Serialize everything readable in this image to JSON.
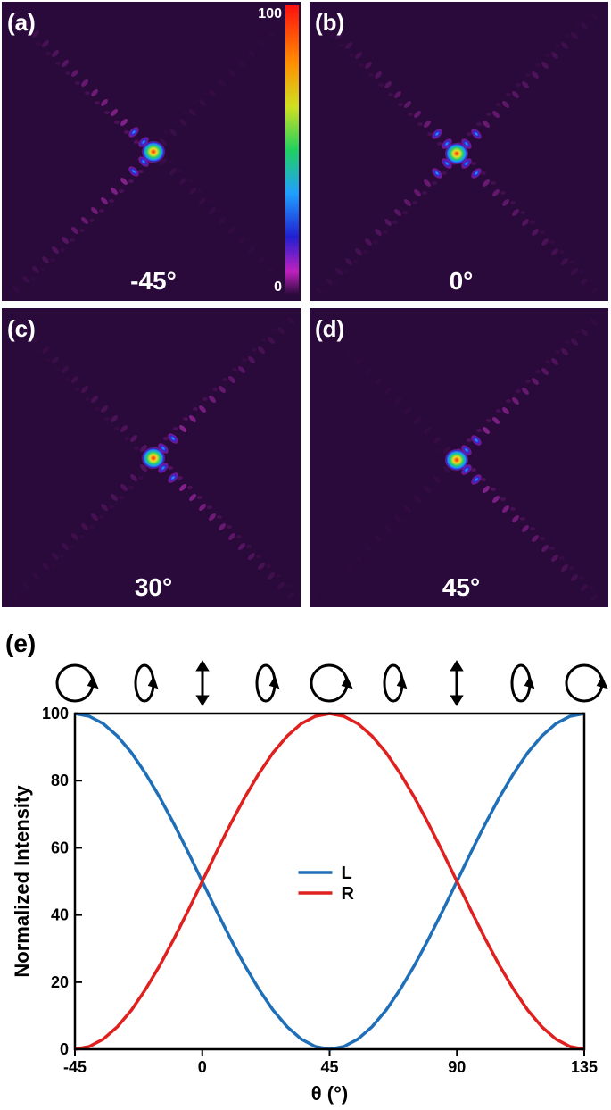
{
  "panels": [
    {
      "label": "(a)",
      "angle": "-45°"
    },
    {
      "label": "(b)",
      "angle": "0°"
    },
    {
      "label": "(c)",
      "angle": "30°"
    },
    {
      "label": "(d)",
      "angle": "45°"
    }
  ],
  "colorbar": {
    "lim": [
      0,
      100
    ],
    "ticks": [
      100,
      0
    ]
  },
  "chart_data": {
    "type": "line",
    "title": "(e)",
    "x_label": "θ (°)",
    "y_label": "Normalized Intensity",
    "x": [
      -45,
      -40,
      -35,
      -30,
      -25,
      -20,
      -15,
      -10,
      -5,
      0,
      5,
      10,
      15,
      20,
      25,
      30,
      35,
      40,
      45,
      50,
      55,
      60,
      65,
      70,
      75,
      80,
      85,
      90,
      95,
      100,
      105,
      110,
      115,
      120,
      125,
      130,
      135
    ],
    "series": [
      {
        "name": "L",
        "color": "#1f6fb8",
        "values": [
          100,
          99.2,
          97.0,
          93.3,
          88.3,
          82.1,
          75,
          67.1,
          58.7,
          50,
          41.3,
          32.9,
          25,
          17.9,
          11.7,
          6.7,
          3.0,
          0.8,
          0,
          0.8,
          3.0,
          6.7,
          11.7,
          17.9,
          25,
          32.9,
          41.3,
          50,
          58.7,
          67.1,
          75,
          82.1,
          88.3,
          93.3,
          97.0,
          99.2,
          100
        ]
      },
      {
        "name": "R",
        "color": "#e0201e",
        "values": [
          0,
          0.8,
          3.0,
          6.7,
          11.7,
          17.9,
          25,
          32.9,
          41.3,
          50,
          58.7,
          67.1,
          75,
          82.1,
          88.3,
          93.3,
          97.0,
          99.2,
          100,
          99.2,
          97.0,
          93.3,
          88.3,
          82.1,
          75,
          67.1,
          58.7,
          50,
          41.3,
          32.9,
          25,
          17.9,
          11.7,
          6.7,
          3.0,
          0.8,
          0
        ]
      }
    ],
    "xlim": [
      -45,
      135
    ],
    "xticks": [
      -45,
      0,
      45,
      90,
      135
    ],
    "ylim": [
      0,
      100
    ],
    "yticks": [
      0,
      20,
      40,
      60,
      80,
      100
    ],
    "legend": "center"
  }
}
